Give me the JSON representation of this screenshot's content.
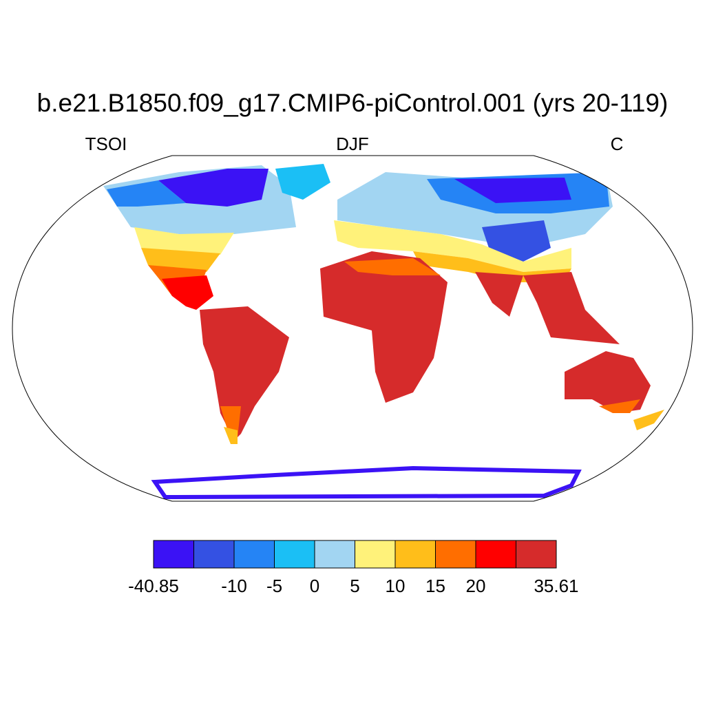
{
  "title": "b.e21.B1850.f09_g17.CMIP6-piControl.001 (yrs 20-119)",
  "labels": {
    "left": "TSOI",
    "center": "DJF",
    "right": "C"
  },
  "colorbar": {
    "colors": [
      "#3b12f5",
      "#3451e3",
      "#2584f5",
      "#1bbff5",
      "#a2d5f2",
      "#fff27a",
      "#ffbe1a",
      "#ff6e00",
      "#ff0000",
      "#d62b2b"
    ],
    "levels": [
      -40.85,
      null,
      -10,
      -5,
      0,
      5,
      10,
      15,
      20,
      null,
      35.61
    ]
  }
}
